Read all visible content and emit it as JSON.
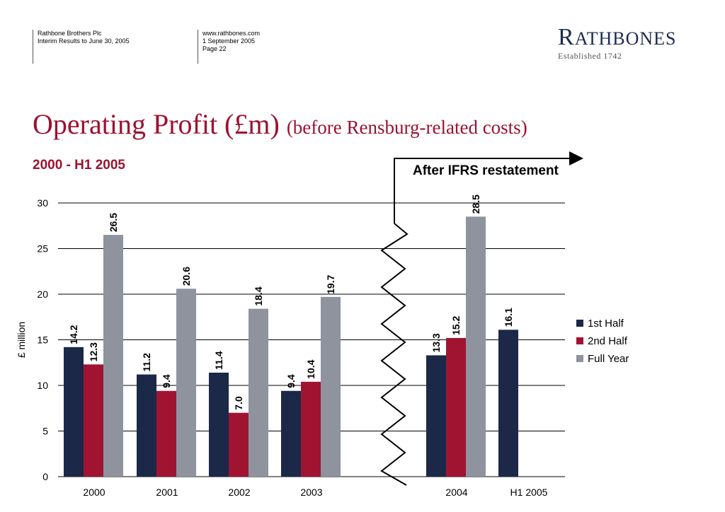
{
  "header": {
    "col1": [
      "Rathbone Brothers Plc",
      "Interim Results to June 30, 2005"
    ],
    "col2": [
      "www.rathbones.com",
      "1 September 2005",
      "Page 22"
    ]
  },
  "logo": {
    "first_letter": "R",
    "rest": "ATHBONES",
    "established": "Established 1742"
  },
  "slide": {
    "title_main": "Operating Profit (£m)",
    "title_sub": "(before Rensburg-related costs)",
    "period": "2000 - H1 2005"
  },
  "colors": {
    "first_half": "#1b2848",
    "second_half": "#a01432",
    "full_year": "#8e939e",
    "accent": "#9b1230"
  },
  "chart_data": {
    "type": "bar",
    "categories": [
      "2000",
      "2001",
      "2002",
      "2003",
      "2004",
      "H1 2005"
    ],
    "ylabel": "£ million",
    "ylim": [
      0,
      30
    ],
    "yticks": [
      0,
      5,
      10,
      15,
      20,
      25,
      30
    ],
    "grid": true,
    "legend_position": "right",
    "annotation": "After IFRS restatement",
    "series": [
      {
        "name": "1st Half",
        "values": [
          14.2,
          11.2,
          11.4,
          9.4,
          13.3,
          16.1
        ]
      },
      {
        "name": "2nd Half",
        "values": [
          12.3,
          9.4,
          7.0,
          10.4,
          15.2,
          null
        ]
      },
      {
        "name": "Full Year",
        "values": [
          26.5,
          20.6,
          18.4,
          19.7,
          28.5,
          null
        ]
      }
    ]
  }
}
